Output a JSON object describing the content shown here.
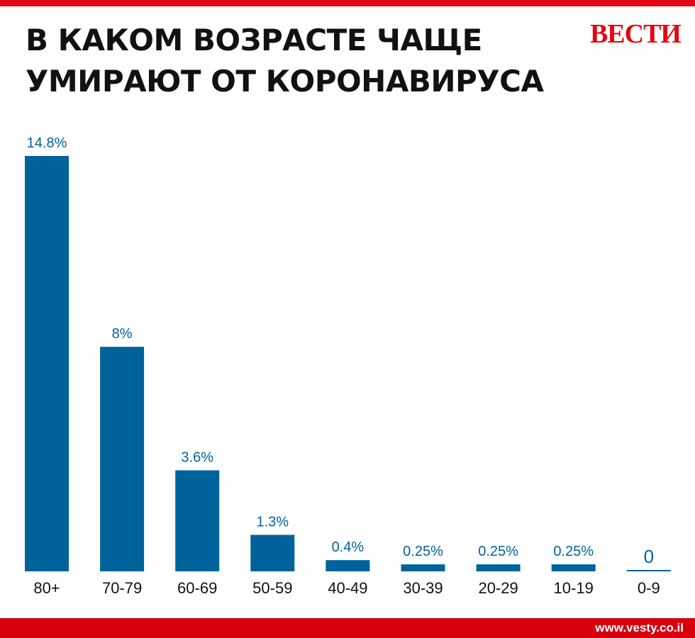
{
  "header": {
    "title_line1": "В КАКОМ ВОЗРАСТЕ ЧАЩЕ",
    "title_line2": "УМИРАЮТ ОТ КОРОНАВИРУСА",
    "brand": "ВЕСТИ"
  },
  "footer": {
    "site": "www.vesty.co.il"
  },
  "colors": {
    "bar": "#00629b",
    "accent": "#e30613",
    "label": "#00629b",
    "tick": "#111111"
  },
  "chart_data": {
    "type": "bar",
    "title": "В КАКОМ ВОЗРАСТЕ ЧАЩЕ УМИРАЮТ ОТ КОРОНАВИРУСА",
    "categories": [
      "80+",
      "70-79",
      "60-69",
      "50-59",
      "40-49",
      "30-39",
      "20-29",
      "10-19",
      "0-9"
    ],
    "values": [
      14.8,
      8,
      3.6,
      1.3,
      0.4,
      0.25,
      0.25,
      0.25,
      0
    ],
    "value_labels": [
      "14.8%",
      "8%",
      "3.6%",
      "1.3%",
      "0.4%",
      "0.25%",
      "0.25%",
      "0.25%",
      "0"
    ],
    "xlabel": "",
    "ylabel": "",
    "ylim": [
      0,
      14.8
    ],
    "grid": false,
    "legend": "none"
  }
}
